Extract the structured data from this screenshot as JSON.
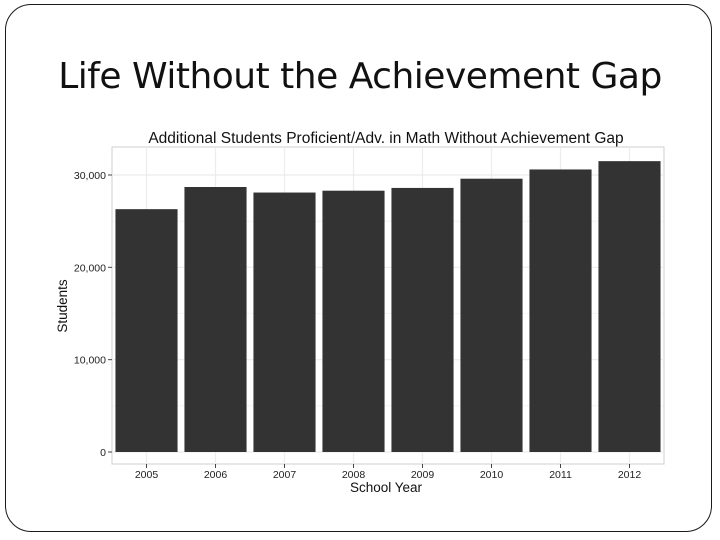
{
  "slide": {
    "title": "Life Without the Achievement Gap"
  },
  "chart_data": {
    "type": "bar",
    "title": "Additional Students Proficient/Adv. in Math Without Achievement Gap",
    "xlabel": "School Year",
    "ylabel": "Students",
    "categories": [
      "2005",
      "2006",
      "2007",
      "2008",
      "2009",
      "2010",
      "2011",
      "2012"
    ],
    "values": [
      26300,
      28700,
      28100,
      28300,
      28600,
      29600,
      30600,
      31500
    ],
    "ylim": [
      0,
      32500
    ],
    "yticks": [
      0,
      10000,
      20000,
      30000
    ],
    "ytick_labels": [
      "0",
      "10,000",
      "20,000",
      "30,000"
    ],
    "grid": true,
    "bar_color": "#333333",
    "panel_color": "#ffffff",
    "grid_color": "#ececec"
  }
}
